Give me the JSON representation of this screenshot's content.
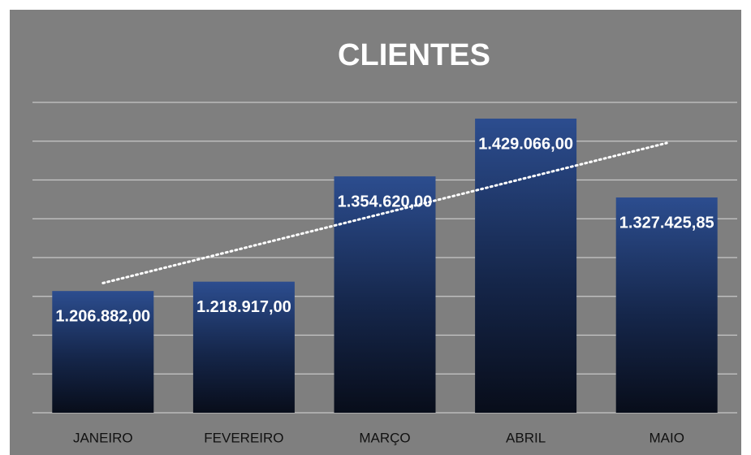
{
  "chart_data": {
    "type": "bar",
    "title": "CLIENTES",
    "categories": [
      "JANEIRO",
      "FEVEREIRO",
      "MARÇO",
      "ABRIL",
      "MAIO"
    ],
    "values": [
      1206882,
      1218917,
      1354620,
      1429066,
      1327425.85
    ],
    "value_labels": [
      "1.206.882,00",
      "1.218.917,00",
      "1.354.620,00",
      "1.429.066,00",
      "1.327.425,85"
    ],
    "color": "#27457f",
    "ylim": [
      1050000,
      1450000
    ],
    "yticks": [
      1050000,
      1100000,
      1150000,
      1200000,
      1250000,
      1300000,
      1350000,
      1400000,
      1450000
    ],
    "grid": true,
    "trendline": "linear"
  }
}
